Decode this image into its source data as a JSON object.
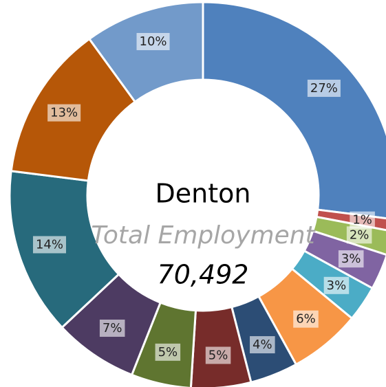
{
  "chart_data": {
    "type": "donut",
    "center_title": "Denton",
    "center_subtitle": "Total Employment",
    "center_value": "70,492",
    "categories": [
      null,
      null,
      null,
      null,
      null,
      null,
      null,
      null,
      null,
      null,
      null,
      null,
      null
    ],
    "values": [
      27,
      1,
      2,
      3,
      3,
      6,
      4,
      5,
      5,
      7,
      14,
      13,
      10
    ],
    "value_labels": [
      "27%",
      "1%",
      "2%",
      "3%",
      "3%",
      "6%",
      "4%",
      "5%",
      "5%",
      "7%",
      "14%",
      "13%",
      "10%"
    ],
    "colors": [
      "#4f81bd",
      "#c0504d",
      "#9bbb59",
      "#8064a2",
      "#4bacc6",
      "#f79646",
      "#2c4d75",
      "#772c2a",
      "#5f7530",
      "#4d3b62",
      "#276a7c",
      "#b65708",
      "#729aca"
    ]
  }
}
